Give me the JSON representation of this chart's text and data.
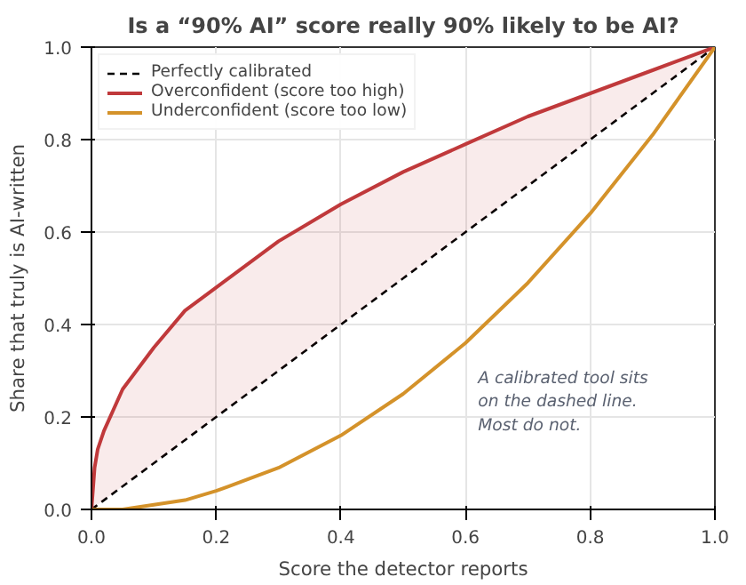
{
  "chart_data": {
    "type": "line",
    "title": "Is a “90% AI” score really 90% likely to be AI?",
    "xlabel": "Score the detector reports",
    "ylabel": "Share that truly is AI-written",
    "x": [
      0,
      0.005,
      0.01,
      0.02,
      0.05,
      0.1,
      0.15,
      0.2,
      0.3,
      0.4,
      0.5,
      0.6,
      0.7,
      0.8,
      0.9,
      1
    ],
    "series": [
      {
        "name": "Perfectly calibrated",
        "color": "#000000",
        "line_style": "dashed",
        "values": [
          0,
          0.005,
          0.01,
          0.02,
          0.05,
          0.1,
          0.15,
          0.2,
          0.3,
          0.4,
          0.5,
          0.6,
          0.7,
          0.8,
          0.9,
          1
        ]
      },
      {
        "name": "Overconfident (score too high)",
        "color": "#c0393b",
        "line_style": "solid",
        "values": [
          0,
          0.09,
          0.13,
          0.17,
          0.26,
          0.35,
          0.43,
          0.48,
          0.58,
          0.66,
          0.73,
          0.79,
          0.85,
          0.9,
          0.95,
          1
        ],
        "lower": [
          0,
          0.005,
          0.01,
          0.02,
          0.05,
          0.1,
          0.15,
          0.2,
          0.3,
          0.4,
          0.5,
          0.6,
          0.7,
          0.8,
          0.9,
          1
        ],
        "upper": [
          0,
          0.09,
          0.13,
          0.17,
          0.26,
          0.35,
          0.43,
          0.48,
          0.58,
          0.66,
          0.73,
          0.79,
          0.85,
          0.9,
          0.95,
          1
        ]
      },
      {
        "name": "Underconfident (score too low)",
        "color": "#d4922a",
        "line_style": "solid",
        "values": [
          0,
          0,
          0,
          0,
          0,
          0.01,
          0.02,
          0.04,
          0.09,
          0.16,
          0.25,
          0.36,
          0.49,
          0.64,
          0.81,
          1
        ]
      }
    ],
    "xlim": [
      0,
      1
    ],
    "ylim": [
      0,
      1
    ],
    "xticks": [
      {
        "value": 0,
        "label": "0.0"
      },
      {
        "value": 0.2,
        "label": "0.2"
      },
      {
        "value": 0.4,
        "label": "0.4"
      },
      {
        "value": 0.6,
        "label": "0.6"
      },
      {
        "value": 0.8,
        "label": "0.8"
      },
      {
        "value": 1,
        "label": "1.0"
      }
    ],
    "yticks": [
      {
        "value": 0,
        "label": "0.0"
      },
      {
        "value": 0.2,
        "label": "0.2"
      },
      {
        "value": 0.4,
        "label": "0.4"
      },
      {
        "value": 0.6,
        "label": "0.6"
      },
      {
        "value": 0.8,
        "label": "0.8"
      },
      {
        "value": 1,
        "label": "1.0"
      }
    ],
    "grid": true,
    "legend": "top left",
    "marker": "none",
    "annotations": [
      "A calibrated tool sits\non the dashed line.\nMost do not."
    ]
  }
}
